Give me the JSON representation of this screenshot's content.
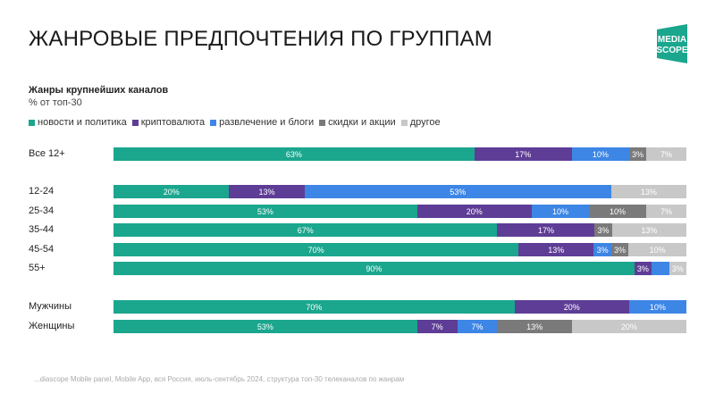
{
  "header": {
    "title": "ЖАНРОВЫЕ ПРЕДПОЧТЕНИЯ ПО ГРУППАМ",
    "logo_text": [
      "MEDIA",
      "SCOPE"
    ]
  },
  "chart_data": {
    "type": "bar",
    "orientation": "horizontal",
    "stacked": true,
    "title": "Жанры крупнейших каналов",
    "subtitle": "% от топ-30",
    "legend_position": "top",
    "series": [
      {
        "name": "новости и политика",
        "color": "#1ba68e"
      },
      {
        "name": "криптовалюта",
        "color": "#5e3d96"
      },
      {
        "name": "развлечение и блоги",
        "color": "#3d86e6"
      },
      {
        "name": "скидки и акции",
        "color": "#7a7a7a"
      },
      {
        "name": "другое",
        "color": "#c8c8c8"
      }
    ],
    "rows": [
      {
        "category": "Все 12+",
        "values": [
          63,
          17,
          10,
          3,
          7
        ],
        "labels": [
          "63%",
          "17%",
          "10%",
          "3%",
          "7%"
        ]
      },
      {
        "category": "12-24",
        "values": [
          20,
          13,
          53,
          0,
          13
        ],
        "labels": [
          "20%",
          "13%",
          "53%",
          "",
          "13%"
        ]
      },
      {
        "category": "25-34",
        "values": [
          53,
          20,
          10,
          10,
          7
        ],
        "labels": [
          "53%",
          "20%",
          "10%",
          "10%",
          "7%"
        ]
      },
      {
        "category": "35-44",
        "values": [
          67,
          17,
          0,
          3,
          13
        ],
        "labels": [
          "67%",
          "17%",
          "",
          "3%",
          "13%"
        ]
      },
      {
        "category": "45-54",
        "values": [
          70,
          13,
          3,
          3,
          10
        ],
        "labels": [
          "70%",
          "13%",
          "3%",
          "3%",
          "10%"
        ]
      },
      {
        "category": "55+",
        "values": [
          90,
          3,
          3,
          0,
          3
        ],
        "labels": [
          "90%",
          "3%",
          "",
          "",
          "3%"
        ]
      },
      {
        "category": "Мужчины",
        "values": [
          70,
          20,
          10,
          0,
          0
        ],
        "labels": [
          "70%",
          "20%",
          "10%",
          "",
          ""
        ]
      },
      {
        "category": "Женщины",
        "values": [
          53,
          7,
          7,
          13,
          20
        ],
        "labels": [
          "53%",
          "7%",
          "7%",
          "13%",
          "20%"
        ]
      }
    ],
    "xlim": [
      0,
      100
    ]
  },
  "footer": {
    "source": "...diascope Mobile panel, Mobile App, вся Россия, июль-сентябрь 2024, структура топ-30 телеканалов по жанрам"
  }
}
